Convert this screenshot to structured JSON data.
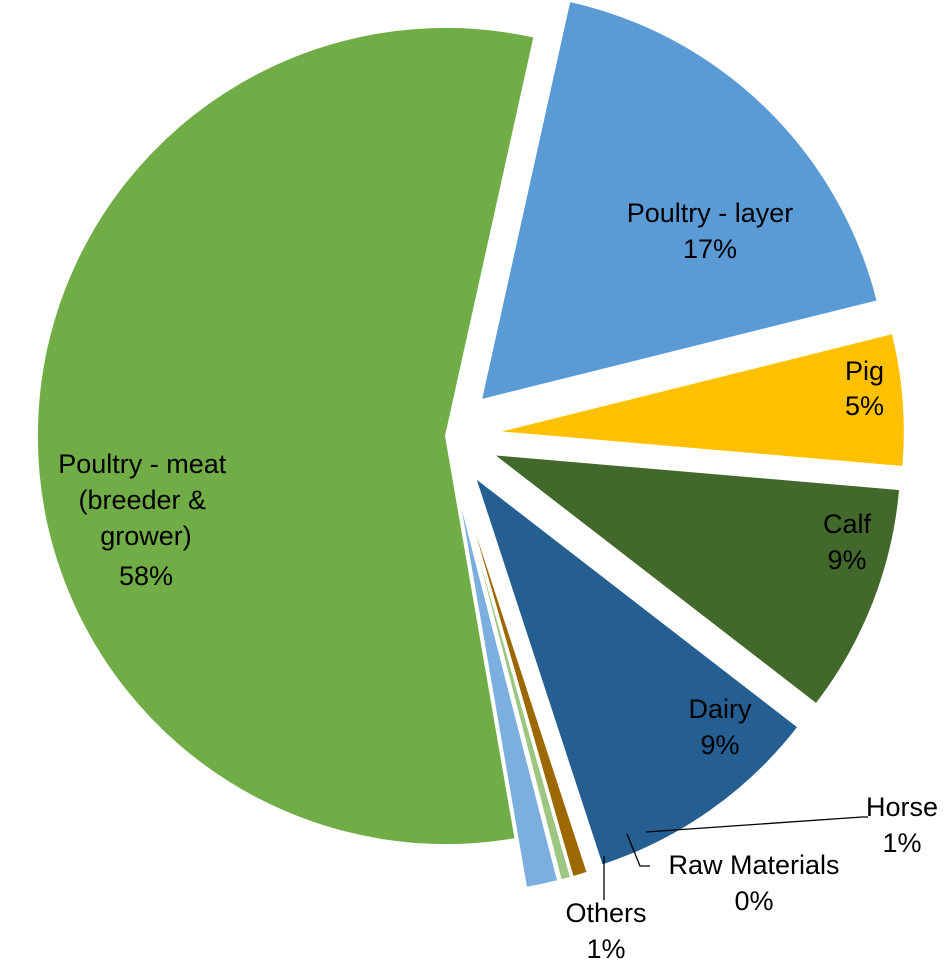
{
  "chart_data": {
    "type": "pie",
    "title": "",
    "exploded": true,
    "legend": "none",
    "slices": [
      {
        "name": "Poultry - layer",
        "percent": 17,
        "label": "17%",
        "color": "#5B9BD5"
      },
      {
        "name": "Pig",
        "percent": 5,
        "label": "5%",
        "color": "#FFC000"
      },
      {
        "name": "Calf",
        "percent": 9,
        "label": "9%",
        "color": "#43682B"
      },
      {
        "name": "Dairy",
        "percent": 9,
        "label": "9%",
        "color": "#255E91"
      },
      {
        "name": "Horse",
        "percent": 1,
        "label": "1%",
        "color": "#9E6800"
      },
      {
        "name": "Raw Materials",
        "percent": 0,
        "label": "0%",
        "color": "#9DC781"
      },
      {
        "name": "Others",
        "percent": 1,
        "label": "1%",
        "color": "#7CAFDD"
      },
      {
        "name": "Poultry - meat (breeder & grower)",
        "percent": 58,
        "label": "58%",
        "color": "#70AD47"
      }
    ]
  }
}
